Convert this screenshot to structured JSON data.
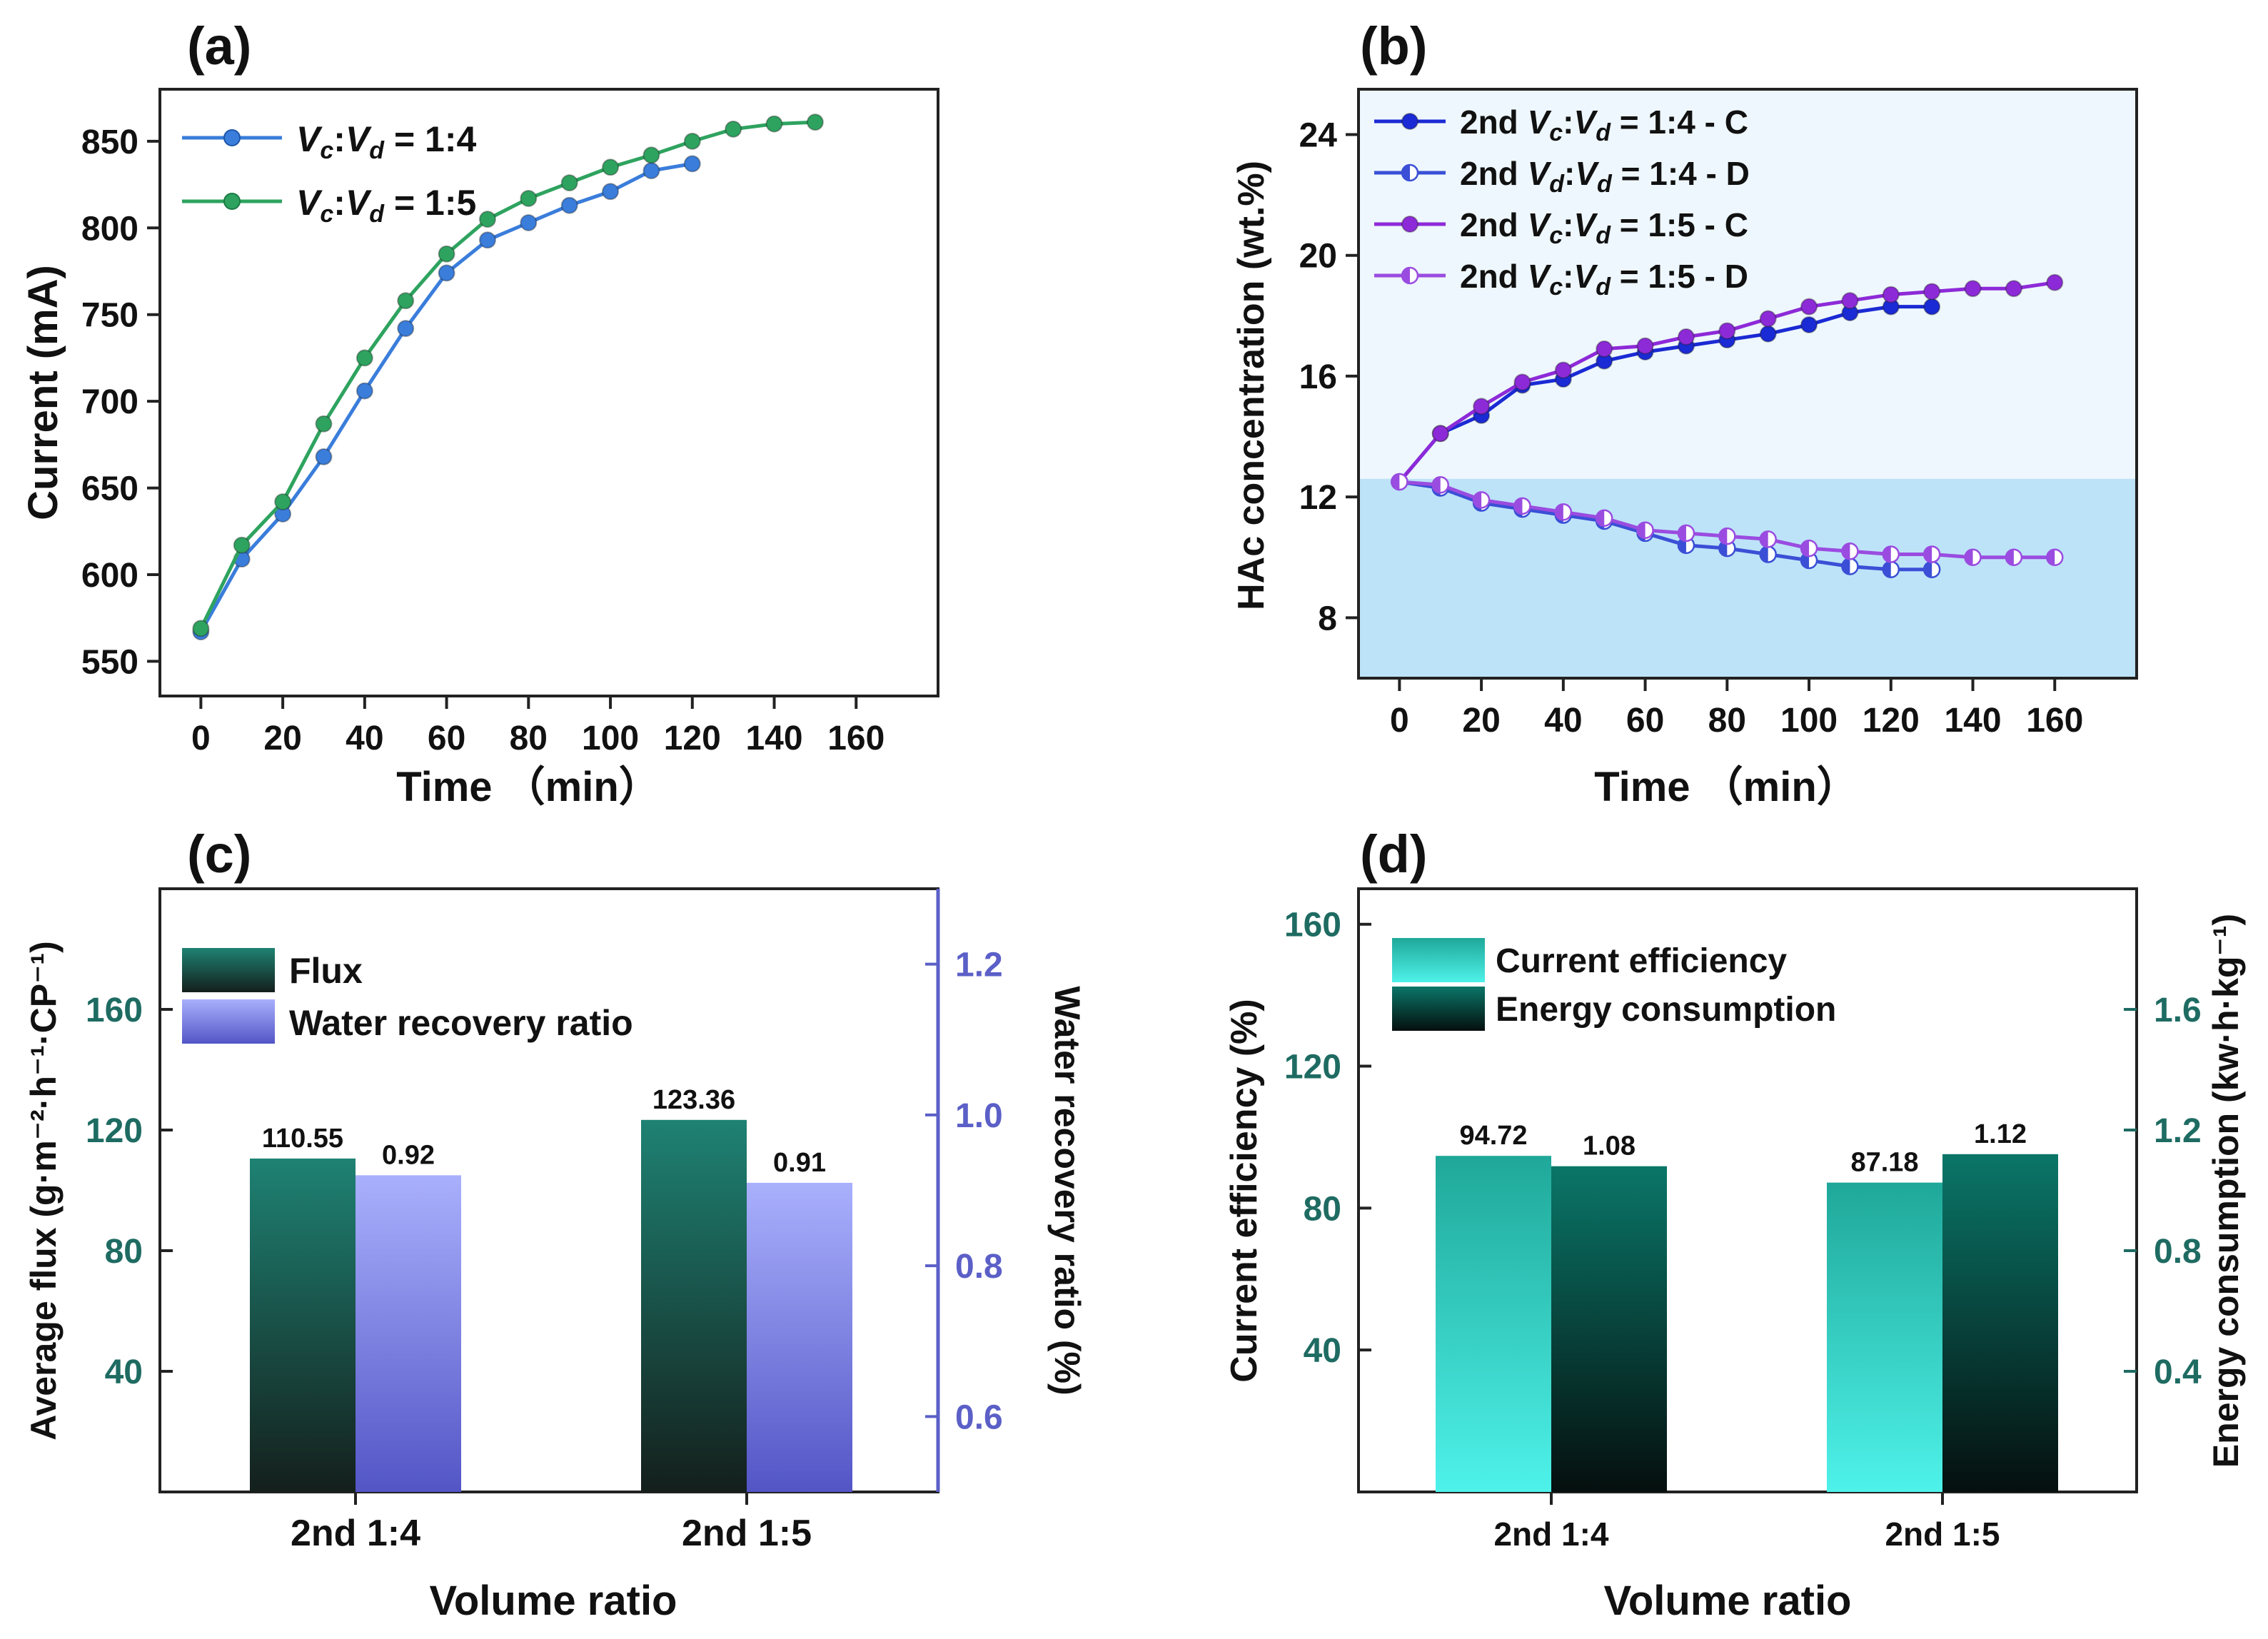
{
  "chart_data": [
    {
      "panel": "(a)",
      "type": "line",
      "xlabel": "Time （min）",
      "ylabel": "Current (mA)",
      "xlim": [
        -10,
        180
      ],
      "ylim": [
        530,
        880
      ],
      "xticks": [
        0,
        20,
        40,
        60,
        80,
        100,
        120,
        140,
        160
      ],
      "yticks": [
        550,
        600,
        650,
        700,
        750,
        800,
        850
      ],
      "legend_position": "top-left",
      "series": [
        {
          "name": "Vc:Vd = 1:4",
          "label_parts": [
            "V",
            "c",
            ":V",
            "d",
            " = 1:4"
          ],
          "color": "#3a7ddb",
          "marker": "filled",
          "x": [
            0,
            10,
            20,
            30,
            40,
            50,
            60,
            70,
            80,
            90,
            100,
            110,
            120
          ],
          "y": [
            567,
            609,
            635,
            668,
            706,
            742,
            774,
            793,
            803,
            813,
            821,
            833,
            837
          ]
        },
        {
          "name": "Vc:Vd = 1:5",
          "label_parts": [
            "V",
            "c",
            ":V",
            "d",
            " = 1:5"
          ],
          "color": "#2ea35f",
          "marker": "filled",
          "x": [
            0,
            10,
            20,
            30,
            40,
            50,
            60,
            70,
            80,
            90,
            100,
            110,
            120,
            130,
            140,
            150
          ],
          "y": [
            569,
            617,
            642,
            687,
            725,
            758,
            785,
            805,
            817,
            826,
            835,
            842,
            850,
            857,
            860,
            861
          ]
        }
      ]
    },
    {
      "panel": "(b)",
      "type": "line",
      "xlabel": "Time （min）",
      "ylabel": "HAc concentration (wt.%)",
      "xlim": [
        -10,
        180
      ],
      "ylim": [
        6,
        25.5
      ],
      "xticks": [
        0,
        20,
        40,
        60,
        80,
        100,
        120,
        140,
        160
      ],
      "yticks": [
        8,
        12,
        16,
        20,
        24
      ],
      "background_split_y": 12.6,
      "background_upper": "#eef7fd",
      "background_lower": "#bde3f8",
      "legend_position": "top-left",
      "series": [
        {
          "name": "2nd Vc:Vd = 1:4 - C",
          "label_parts": [
            "2nd ",
            "V",
            "c",
            ":V",
            "d",
            " = 1:4 - C"
          ],
          "color": "#1a2ad4",
          "marker": "filled",
          "x": [
            0,
            10,
            20,
            30,
            40,
            50,
            60,
            70,
            80,
            90,
            100,
            110,
            120,
            130
          ],
          "y": [
            12.5,
            14.1,
            14.7,
            15.7,
            15.9,
            16.5,
            16.8,
            17.0,
            17.2,
            17.4,
            17.7,
            18.1,
            18.3,
            18.3
          ]
        },
        {
          "name": "2nd Vd:Vd = 1:4 - D",
          "label_parts": [
            "2nd ",
            "V",
            "d",
            ":V",
            "d",
            " = 1:4 - D"
          ],
          "color": "#3a4fd6",
          "marker": "half",
          "x": [
            0,
            10,
            20,
            30,
            40,
            50,
            60,
            70,
            80,
            90,
            100,
            110,
            120,
            130
          ],
          "y": [
            12.5,
            12.3,
            11.8,
            11.6,
            11.4,
            11.2,
            10.8,
            10.4,
            10.3,
            10.1,
            9.9,
            9.7,
            9.6,
            9.6
          ]
        },
        {
          "name": "2nd Vc:Vd = 1:5 - C",
          "label_parts": [
            "2nd ",
            "V",
            "c",
            ":V",
            "d",
            " = 1:5 - C"
          ],
          "color": "#8d2ad8",
          "marker": "filled",
          "x": [
            0,
            10,
            20,
            30,
            40,
            50,
            60,
            70,
            80,
            90,
            100,
            110,
            120,
            130,
            140,
            150,
            160
          ],
          "y": [
            12.5,
            14.1,
            15.0,
            15.8,
            16.2,
            16.9,
            17.0,
            17.3,
            17.5,
            17.9,
            18.3,
            18.5,
            18.7,
            18.8,
            18.9,
            18.9,
            19.1
          ]
        },
        {
          "name": "2nd Vc:Vd = 1:5 - D",
          "label_parts": [
            "2nd ",
            "V",
            "c",
            ":V",
            "d",
            " = 1:5 - D"
          ],
          "color": "#9a4ce0",
          "marker": "half",
          "x": [
            0,
            10,
            20,
            30,
            40,
            50,
            60,
            70,
            80,
            90,
            100,
            110,
            120,
            130,
            140,
            150,
            160
          ],
          "y": [
            12.5,
            12.4,
            11.9,
            11.7,
            11.5,
            11.3,
            10.9,
            10.8,
            10.7,
            10.6,
            10.3,
            10.2,
            10.1,
            10.1,
            10.0,
            10.0,
            10.0
          ]
        }
      ]
    },
    {
      "panel": "(c)",
      "type": "bar",
      "xlabel": "Volume ratio",
      "ylabel": "Average flux (g·m⁻²·h⁻¹·CP⁻¹)",
      "y2label": "Water recovery ratio (%)",
      "categories": [
        "2nd 1:4",
        "2nd 1:5"
      ],
      "ylim": [
        0,
        200
      ],
      "yticks": [
        40,
        80,
        120,
        160
      ],
      "y2lim": [
        0.5,
        1.3
      ],
      "y2ticks": [
        "0.6",
        "0.8",
        "1.0",
        "1.2"
      ],
      "legend_position": "top-left",
      "series": [
        {
          "name": "Flux",
          "axis": "left",
          "values": [
            110.55,
            123.36
          ],
          "labels": [
            "110.55",
            "123.36"
          ],
          "color_top": "#1e8273",
          "color_bottom": "#141f1c"
        },
        {
          "name": "Water recovery ratio",
          "axis": "right",
          "values": [
            0.92,
            0.91
          ],
          "labels": [
            "0.92",
            "0.91"
          ],
          "color_top": "#a9b0fc",
          "color_bottom": "#5355c6"
        }
      ]
    },
    {
      "panel": "(d)",
      "type": "bar",
      "xlabel": "Volume ratio",
      "ylabel": "Current efficiency (%)",
      "y2label": "Energy consumption (kw·h·kg⁻¹)",
      "categories": [
        "2nd 1:4",
        "2nd 1:5"
      ],
      "ylim": [
        0,
        170
      ],
      "yticks": [
        40,
        80,
        120,
        160
      ],
      "y2lim": [
        0,
        2.0
      ],
      "y2ticks": [
        "0.4",
        "0.8",
        "1.2",
        "1.6"
      ],
      "legend_position": "top-left",
      "series": [
        {
          "name": "Current efficiency",
          "axis": "left",
          "values": [
            94.72,
            87.18
          ],
          "labels": [
            "94.72",
            "87.18"
          ],
          "color_top": "#1fa899",
          "color_bottom": "#4ef2ea"
        },
        {
          "name": "Energy consumption",
          "axis": "right",
          "values": [
            1.08,
            1.12
          ],
          "labels": [
            "1.08",
            "1.12"
          ],
          "color_top": "#0a7668",
          "color_bottom": "#050f0e"
        }
      ]
    }
  ]
}
